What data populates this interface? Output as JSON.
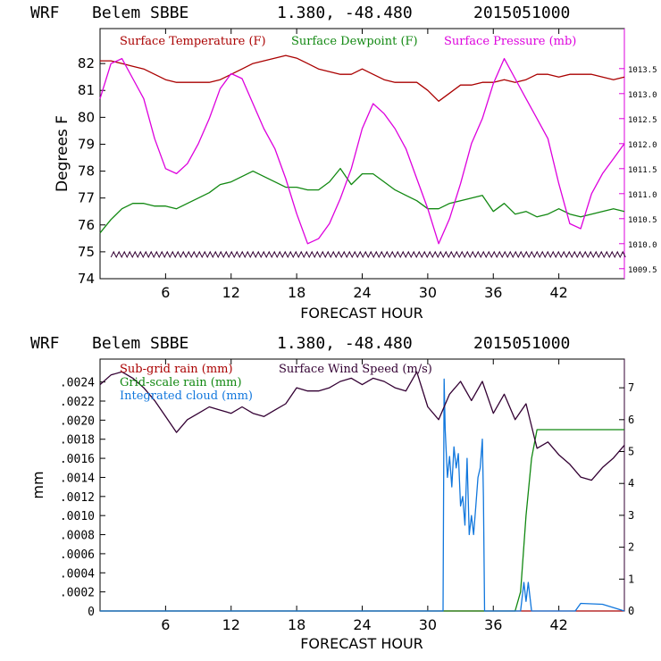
{
  "chart_data": [
    {
      "type": "line",
      "header": {
        "model": "WRF",
        "station": "Belem SBBE",
        "coords": "1.380, -48.480",
        "run": "2015051000"
      },
      "xlabel": "FORECAST HOUR",
      "ylabel": "Degrees F",
      "xlim": [
        0,
        48
      ],
      "ylim": [
        74,
        83.3
      ],
      "x_ticks": [
        6,
        12,
        18,
        24,
        30,
        36,
        42
      ],
      "y_ticks": [
        74,
        75,
        76,
        77,
        78,
        79,
        80,
        81,
        82
      ],
      "y2lim": [
        1009.3,
        1014.3
      ],
      "y2_ticks": [
        "1009.5",
        "1010.0",
        "1010.5",
        "1011.0",
        "1011.5",
        "1012.0",
        "1012.5",
        "1013.0",
        "1013.5"
      ],
      "colors": {
        "temperature": "#aa0000",
        "dewpoint": "#118811",
        "pressure": "#dd00dd",
        "wind": "#330033"
      },
      "series": [
        {
          "name": "Surface Temperature (F)",
          "axis": "left",
          "x": [
            0,
            1,
            2,
            3,
            4,
            5,
            6,
            7,
            8,
            9,
            10,
            11,
            12,
            13,
            14,
            15,
            16,
            17,
            18,
            19,
            20,
            21,
            22,
            23,
            24,
            25,
            26,
            27,
            28,
            29,
            30,
            31,
            32,
            33,
            34,
            35,
            36,
            37,
            38,
            39,
            40,
            41,
            42,
            43,
            44,
            45,
            46,
            47,
            48
          ],
          "y": [
            82.1,
            82.1,
            82.0,
            81.9,
            81.8,
            81.6,
            81.4,
            81.3,
            81.3,
            81.3,
            81.3,
            81.4,
            81.6,
            81.8,
            82.0,
            82.1,
            82.2,
            82.3,
            82.2,
            82.0,
            81.8,
            81.7,
            81.6,
            81.6,
            81.8,
            81.6,
            81.4,
            81.3,
            81.3,
            81.3,
            81.0,
            80.6,
            80.9,
            81.2,
            81.2,
            81.3,
            81.3,
            81.4,
            81.3,
            81.4,
            81.6,
            81.6,
            81.5,
            81.6,
            81.6,
            81.6,
            81.5,
            81.4,
            81.5
          ]
        },
        {
          "name": "Surface Dewpoint (F)",
          "axis": "left",
          "x": [
            0,
            1,
            2,
            3,
            4,
            5,
            6,
            7,
            8,
            9,
            10,
            11,
            12,
            13,
            14,
            15,
            16,
            17,
            18,
            19,
            20,
            21,
            22,
            23,
            24,
            25,
            26,
            27,
            28,
            29,
            30,
            31,
            32,
            33,
            34,
            35,
            36,
            37,
            38,
            39,
            40,
            41,
            42,
            43,
            44,
            45,
            46,
            47,
            48
          ],
          "y": [
            75.7,
            76.2,
            76.6,
            76.8,
            76.8,
            76.7,
            76.7,
            76.6,
            76.8,
            77.0,
            77.2,
            77.5,
            77.6,
            77.8,
            78.0,
            77.8,
            77.6,
            77.4,
            77.4,
            77.3,
            77.3,
            77.6,
            78.1,
            77.5,
            77.9,
            77.9,
            77.6,
            77.3,
            77.1,
            76.9,
            76.6,
            76.6,
            76.8,
            76.9,
            77.0,
            77.1,
            76.5,
            76.8,
            76.4,
            76.5,
            76.3,
            76.4,
            76.6,
            76.4,
            76.3,
            76.4,
            76.5,
            76.6,
            76.5
          ]
        },
        {
          "name": "Surface Pressure (mb)",
          "axis": "right",
          "x": [
            0,
            1,
            2,
            3,
            4,
            5,
            6,
            7,
            8,
            9,
            10,
            11,
            12,
            13,
            14,
            15,
            16,
            17,
            18,
            19,
            20,
            21,
            22,
            23,
            24,
            25,
            26,
            27,
            28,
            29,
            30,
            31,
            32,
            33,
            34,
            35,
            36,
            37,
            38,
            39,
            40,
            41,
            42,
            43,
            44,
            45,
            46,
            47,
            48
          ],
          "y": [
            1012.9,
            1013.6,
            1013.7,
            1013.3,
            1012.9,
            1012.1,
            1011.5,
            1011.4,
            1011.6,
            1012.0,
            1012.5,
            1013.1,
            1013.4,
            1013.3,
            1012.8,
            1012.3,
            1011.9,
            1011.3,
            1010.6,
            1010.0,
            1010.1,
            1010.4,
            1010.9,
            1011.5,
            1012.3,
            1012.8,
            1012.6,
            1012.3,
            1011.9,
            1011.3,
            1010.7,
            1010.0,
            1010.5,
            1011.2,
            1012.0,
            1012.5,
            1013.2,
            1013.7,
            1013.3,
            1012.9,
            1012.5,
            1012.1,
            1011.2,
            1010.4,
            1010.3,
            1011.0,
            1011.4,
            1011.7,
            1012.0
          ]
        },
        {
          "name": "Wind barbs",
          "axis": "left",
          "x": [
            1,
            48
          ],
          "y": [
            74.8,
            74.8
          ]
        }
      ]
    },
    {
      "type": "line",
      "header": {
        "model": "WRF",
        "station": "Belem SBBE",
        "coords": "1.380, -48.480",
        "run": "2015051000"
      },
      "xlabel": "FORECAST HOUR",
      "ylabel": "mm",
      "xlim": [
        0,
        48
      ],
      "ylim": [
        0,
        0.00264
      ],
      "x_ticks": [
        6,
        12,
        18,
        24,
        30,
        36,
        42
      ],
      "y_ticks": [
        "0",
        ".0002",
        ".0004",
        ".0006",
        ".0008",
        ".0010",
        ".0012",
        ".0014",
        ".0016",
        ".0018",
        ".0020",
        ".0022",
        ".0024"
      ],
      "y2lim": [
        0,
        7.9
      ],
      "y2_ticks": [
        "0",
        "1",
        "2",
        "3",
        "4",
        "5",
        "6",
        "7"
      ],
      "colors": {
        "subgrid": "#aa0000",
        "grid": "#118811",
        "cloud": "#1177dd",
        "wind": "#330033"
      },
      "series": [
        {
          "name": "Sub-grid rain (mm)",
          "axis": "left",
          "x": [
            0,
            48
          ],
          "y": [
            0,
            0
          ]
        },
        {
          "name": "Grid-scale rain (mm)",
          "axis": "left",
          "x": [
            0,
            38,
            38.5,
            39,
            39.5,
            40,
            44,
            48
          ],
          "y": [
            0,
            0,
            0.0002,
            0.001,
            0.0016,
            0.0019,
            0.0019,
            0.0019
          ]
        },
        {
          "name": "Integrated cloud (mm)",
          "axis": "left",
          "x": [
            0,
            31.4,
            31.5,
            31.6,
            31.8,
            32.0,
            32.2,
            32.4,
            32.6,
            32.8,
            33.0,
            33.2,
            33.4,
            33.6,
            33.8,
            34.0,
            34.2,
            34.4,
            34.6,
            34.8,
            35.0,
            35.1,
            35.2,
            38.5,
            38.8,
            39.0,
            39.2,
            39.5,
            43.5,
            44,
            46,
            48
          ],
          "y": [
            0,
            0,
            0.00243,
            0.0019,
            0.0014,
            0.00162,
            0.0013,
            0.00172,
            0.0015,
            0.00165,
            0.0011,
            0.0012,
            0.0009,
            0.0016,
            0.0008,
            0.001,
            0.0008,
            0.0011,
            0.0014,
            0.0015,
            0.0018,
            0.0012,
            0,
            0,
            0.0003,
            0.0001,
            0.0003,
            0,
            0,
            8e-05,
            7e-05,
            0
          ]
        },
        {
          "name": "Surface Wind Speed (m/s)",
          "axis": "right",
          "x": [
            0,
            1,
            2,
            3,
            4,
            5,
            6,
            7,
            8,
            9,
            10,
            11,
            12,
            13,
            14,
            15,
            16,
            17,
            18,
            19,
            20,
            21,
            22,
            23,
            24,
            25,
            26,
            27,
            28,
            29,
            30,
            31,
            32,
            33,
            34,
            35,
            36,
            37,
            38,
            39,
            40,
            41,
            42,
            43,
            44,
            45,
            46,
            47,
            48
          ],
          "y": [
            7.1,
            7.4,
            7.5,
            7.3,
            7.0,
            6.6,
            6.1,
            5.6,
            6.0,
            6.2,
            6.4,
            6.3,
            6.2,
            6.4,
            6.2,
            6.1,
            6.3,
            6.5,
            7.0,
            6.9,
            6.9,
            7.0,
            7.2,
            7.3,
            7.1,
            7.3,
            7.2,
            7.0,
            6.9,
            7.5,
            6.4,
            6.0,
            6.8,
            7.2,
            6.6,
            7.2,
            6.2,
            6.8,
            6.0,
            6.5,
            5.1,
            5.3,
            4.9,
            4.6,
            4.2,
            4.1,
            4.5,
            4.8,
            5.2
          ]
        }
      ]
    }
  ]
}
